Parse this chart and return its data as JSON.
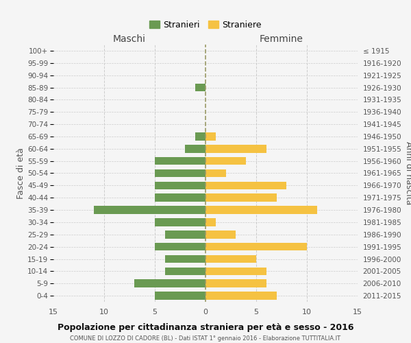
{
  "age_groups": [
    "0-4",
    "5-9",
    "10-14",
    "15-19",
    "20-24",
    "25-29",
    "30-34",
    "35-39",
    "40-44",
    "45-49",
    "50-54",
    "55-59",
    "60-64",
    "65-69",
    "70-74",
    "75-79",
    "80-84",
    "85-89",
    "90-94",
    "95-99",
    "100+"
  ],
  "birth_years": [
    "2011-2015",
    "2006-2010",
    "2001-2005",
    "1996-2000",
    "1991-1995",
    "1986-1990",
    "1981-1985",
    "1976-1980",
    "1971-1975",
    "1966-1970",
    "1961-1965",
    "1956-1960",
    "1951-1955",
    "1946-1950",
    "1941-1945",
    "1936-1940",
    "1931-1935",
    "1926-1930",
    "1921-1925",
    "1916-1920",
    "≤ 1915"
  ],
  "males": [
    5,
    7,
    4,
    4,
    5,
    4,
    5,
    11,
    5,
    5,
    5,
    5,
    2,
    1,
    0,
    0,
    0,
    1,
    0,
    0,
    0
  ],
  "females": [
    7,
    6,
    6,
    5,
    10,
    3,
    1,
    11,
    7,
    8,
    2,
    4,
    6,
    1,
    0,
    0,
    0,
    0,
    0,
    0,
    0
  ],
  "male_color": "#6a9a52",
  "female_color": "#f5c242",
  "male_label": "Stranieri",
  "female_label": "Straniere",
  "title": "Popolazione per cittadinanza straniera per età e sesso - 2016",
  "subtitle": "COMUNE DI LOZZO DI CADORE (BL) - Dati ISTAT 1° gennaio 2016 - Elaborazione TUTTITALIA.IT",
  "xlabel_left": "Maschi",
  "xlabel_right": "Femmine",
  "ylabel_left": "Fasce di età",
  "ylabel_right": "Anni di nascita",
  "xlim": 15,
  "bg_color": "#f5f5f5",
  "grid_color": "#cccccc",
  "dashed_line_color": "#999966"
}
